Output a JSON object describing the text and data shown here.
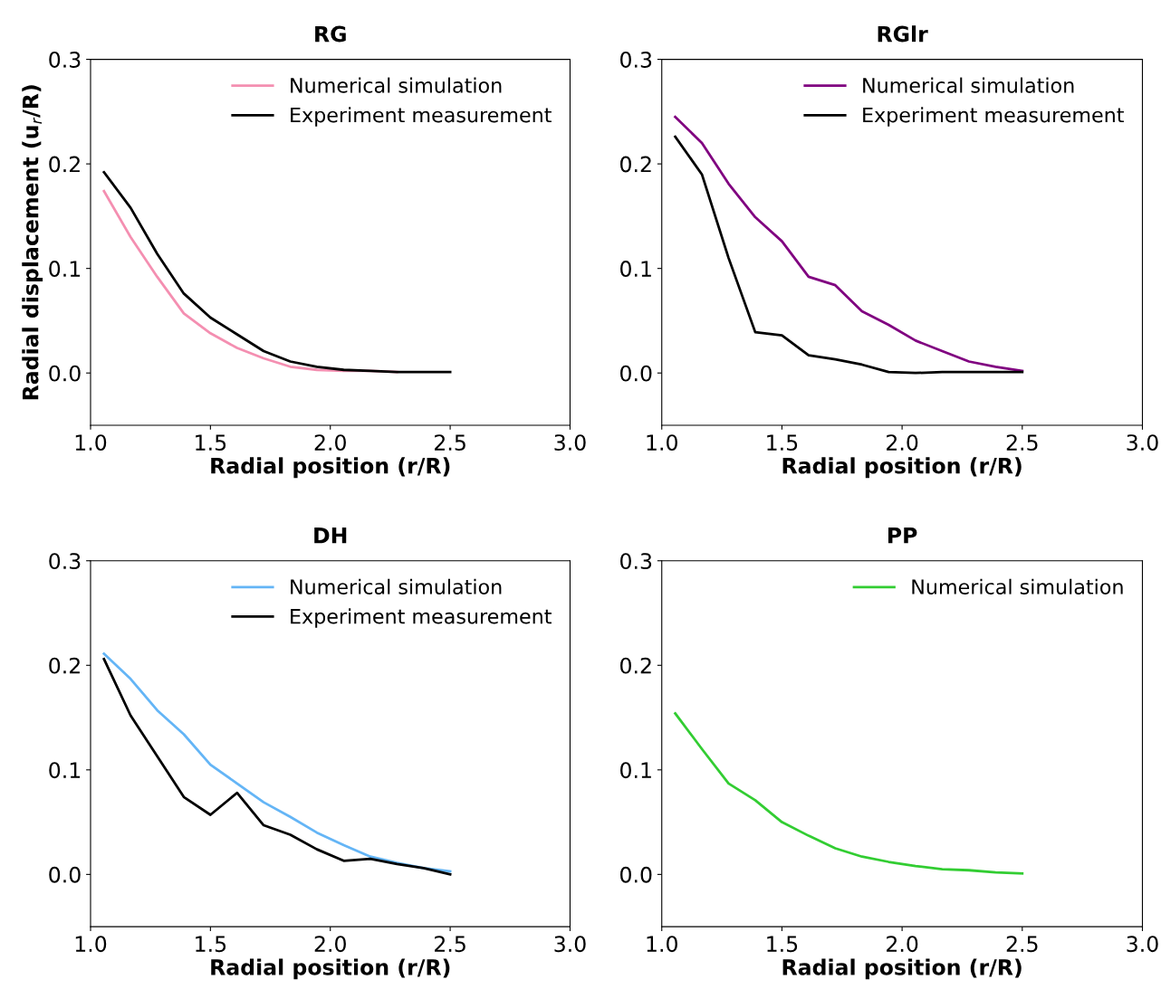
{
  "chart_data": [
    {
      "type": "line",
      "title": "RG",
      "xlabel": "Radial position (r/R)",
      "ylabel": "Radial displacement (u$_{r}$/R)",
      "xlim": [
        1.0,
        3.0
      ],
      "xticks": [
        {
          "value": 1.0,
          "label": "1.0"
        },
        {
          "value": 1.5,
          "label": "1.5"
        },
        {
          "value": 2.0,
          "label": "2.0"
        },
        {
          "value": 2.5,
          "label": "2.5"
        },
        {
          "value": 3.0,
          "label": "3.0"
        }
      ],
      "ylim": [
        -0.05,
        0.3
      ],
      "yticks": [
        {
          "value": 0.0,
          "label": "0.0"
        },
        {
          "value": 0.1,
          "label": "0.1"
        },
        {
          "value": 0.2,
          "label": "0.2"
        },
        {
          "value": 0.3,
          "label": "0.3"
        }
      ],
      "grid": false,
      "legend": "top right",
      "x": [
        1.056,
        1.167,
        1.278,
        1.389,
        1.5,
        1.611,
        1.722,
        1.833,
        1.944,
        2.056,
        2.167,
        2.278,
        2.389,
        2.5
      ],
      "series": [
        {
          "name": "Numerical simulation",
          "color": "#f48fb1",
          "values": [
            0.174,
            0.13,
            0.092,
            0.057,
            0.038,
            0.024,
            0.014,
            0.006,
            0.003,
            0.002,
            0.002,
            0.001,
            null,
            null
          ]
        },
        {
          "name": "Experiment measurement",
          "color": "#000000",
          "values": [
            0.192,
            0.158,
            0.114,
            0.076,
            0.053,
            0.037,
            0.021,
            0.011,
            0.006,
            0.003,
            0.002,
            0.001,
            0.001,
            0.001
          ]
        }
      ]
    },
    {
      "type": "line",
      "title": "RGlr",
      "xlabel": "Radial position (r/R)",
      "xlim": [
        1.0,
        3.0
      ],
      "xticks": [
        {
          "value": 1.0,
          "label": "1.0"
        },
        {
          "value": 1.5,
          "label": "1.5"
        },
        {
          "value": 2.0,
          "label": "2.0"
        },
        {
          "value": 2.5,
          "label": "2.5"
        },
        {
          "value": 3.0,
          "label": "3.0"
        }
      ],
      "ylim": [
        -0.05,
        0.3
      ],
      "yticks": [
        {
          "value": 0.0,
          "label": "0.0"
        },
        {
          "value": 0.1,
          "label": "0.1"
        },
        {
          "value": 0.2,
          "label": "0.2"
        },
        {
          "value": 0.3,
          "label": "0.3"
        }
      ],
      "grid": false,
      "legend": "top right",
      "x": [
        1.056,
        1.167,
        1.278,
        1.389,
        1.5,
        1.611,
        1.722,
        1.833,
        1.944,
        2.056,
        2.167,
        2.278,
        2.389,
        2.5
      ],
      "series": [
        {
          "name": "Numerical simulation",
          "color": "#800080",
          "values": [
            0.245,
            0.22,
            0.181,
            0.149,
            0.126,
            0.092,
            0.084,
            0.059,
            0.046,
            0.031,
            0.021,
            0.011,
            0.006,
            0.002
          ]
        },
        {
          "name": "Experiment measurement",
          "color": "#000000",
          "values": [
            0.226,
            0.19,
            0.11,
            0.039,
            0.036,
            0.017,
            0.013,
            0.008,
            0.001,
            0.0,
            0.001,
            0.001,
            0.001,
            0.001
          ]
        }
      ]
    },
    {
      "type": "line",
      "title": "DH",
      "xlabel": "Radial position (r/R)",
      "xlim": [
        1.0,
        3.0
      ],
      "xticks": [
        {
          "value": 1.0,
          "label": "1.0"
        },
        {
          "value": 1.5,
          "label": "1.5"
        },
        {
          "value": 2.0,
          "label": "2.0"
        },
        {
          "value": 2.5,
          "label": "2.5"
        },
        {
          "value": 3.0,
          "label": "3.0"
        }
      ],
      "ylim": [
        -0.05,
        0.3
      ],
      "yticks": [
        {
          "value": 0.0,
          "label": "0.0"
        },
        {
          "value": 0.1,
          "label": "0.1"
        },
        {
          "value": 0.2,
          "label": "0.2"
        },
        {
          "value": 0.3,
          "label": "0.3"
        }
      ],
      "grid": false,
      "legend": "top right",
      "x": [
        1.056,
        1.167,
        1.278,
        1.389,
        1.5,
        1.611,
        1.722,
        1.833,
        1.944,
        2.056,
        2.167,
        2.278,
        2.389,
        2.5
      ],
      "series": [
        {
          "name": "Numerical simulation",
          "color": "#64b5f6",
          "values": [
            0.211,
            0.187,
            0.157,
            0.134,
            0.105,
            0.087,
            0.069,
            0.055,
            0.04,
            0.028,
            0.017,
            0.011,
            0.006,
            0.003
          ]
        },
        {
          "name": "Experiment measurement",
          "color": "#000000",
          "values": [
            0.206,
            0.152,
            0.113,
            0.074,
            0.057,
            0.078,
            0.047,
            0.038,
            0.024,
            0.013,
            0.015,
            0.01,
            0.006,
            0.0
          ]
        }
      ]
    },
    {
      "type": "line",
      "title": "PP",
      "xlabel": "Radial position (r/R)",
      "xlim": [
        1.0,
        3.0
      ],
      "xticks": [
        {
          "value": 1.0,
          "label": "1.0"
        },
        {
          "value": 1.5,
          "label": "1.5"
        },
        {
          "value": 2.0,
          "label": "2.0"
        },
        {
          "value": 2.5,
          "label": "2.5"
        },
        {
          "value": 3.0,
          "label": "3.0"
        }
      ],
      "ylim": [
        -0.05,
        0.3
      ],
      "yticks": [
        {
          "value": 0.0,
          "label": "0.0"
        },
        {
          "value": 0.1,
          "label": "0.1"
        },
        {
          "value": 0.2,
          "label": "0.2"
        },
        {
          "value": 0.3,
          "label": "0.3"
        }
      ],
      "grid": false,
      "legend": "top right",
      "x": [
        1.056,
        1.167,
        1.278,
        1.389,
        1.5,
        1.611,
        1.722,
        1.833,
        1.944,
        2.056,
        2.167,
        2.278,
        2.389,
        2.5
      ],
      "series": [
        {
          "name": "Numerical simulation",
          "color": "#32cd32",
          "values": [
            0.154,
            0.12,
            0.087,
            0.071,
            0.05,
            0.037,
            0.025,
            0.017,
            0.012,
            0.008,
            0.005,
            0.004,
            0.002,
            0.001
          ]
        }
      ]
    }
  ]
}
